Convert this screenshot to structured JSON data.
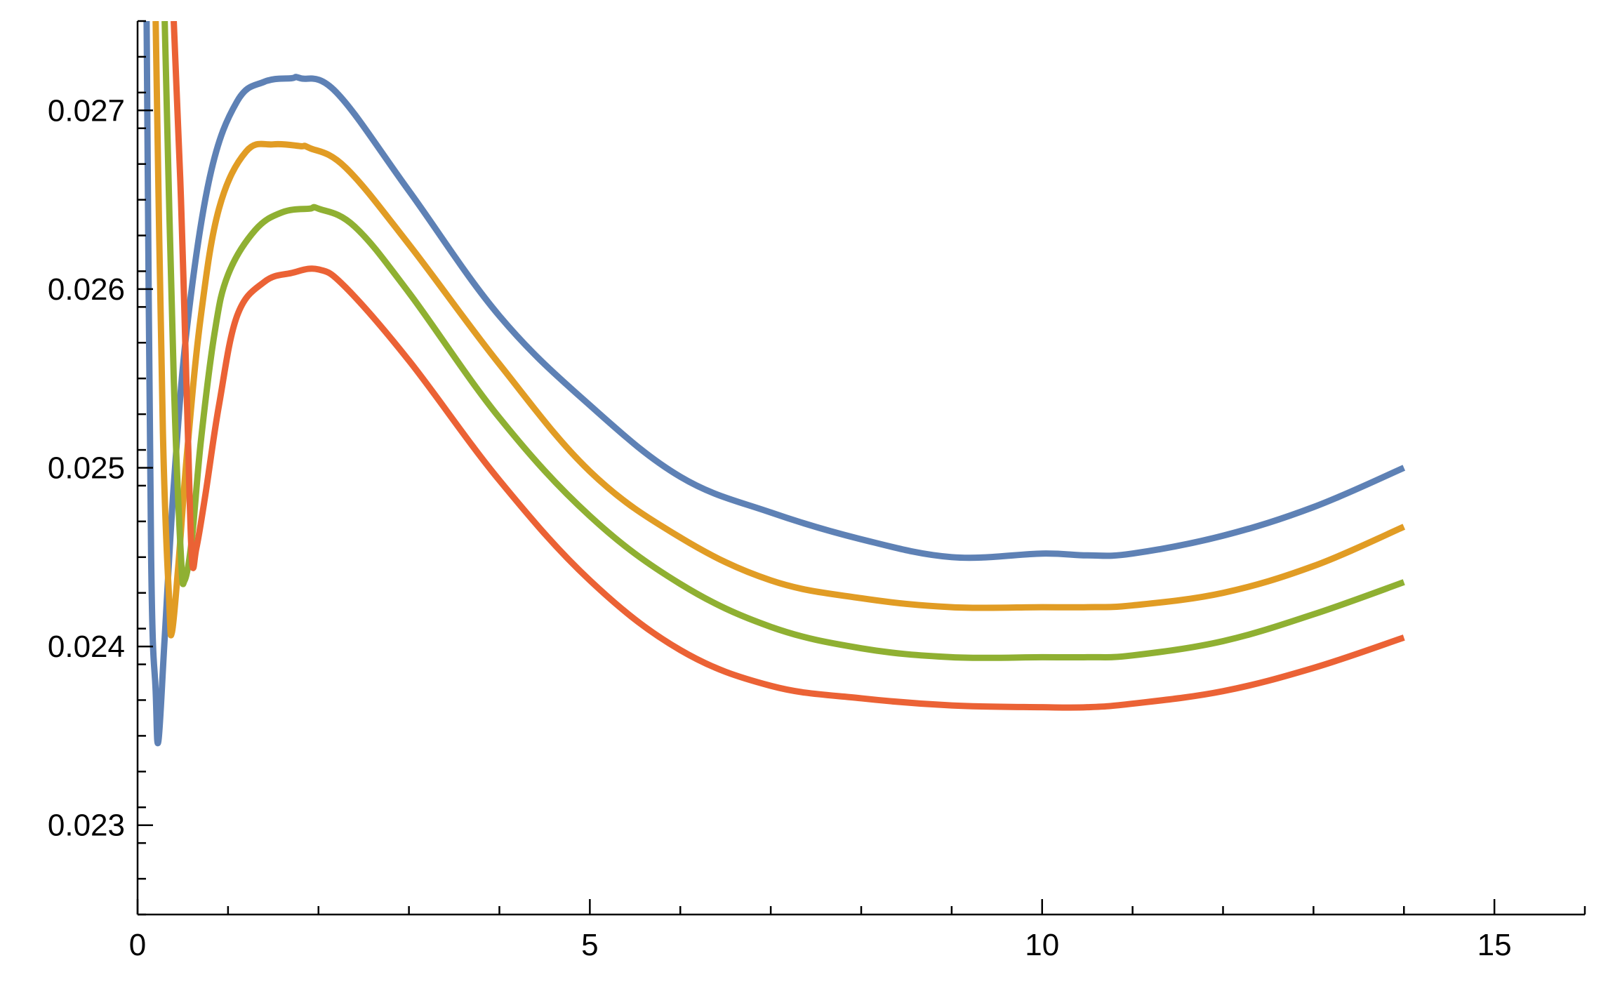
{
  "chart_data": {
    "type": "line",
    "title": "",
    "xlabel": "",
    "ylabel": "",
    "xlim": [
      0,
      16
    ],
    "ylim": [
      0.0225,
      0.0275
    ],
    "x_ticks": [
      0,
      5,
      10,
      15
    ],
    "x_tick_labels": [
      "0",
      "5",
      "10",
      "15"
    ],
    "y_ticks": [
      0.023,
      0.024,
      0.025,
      0.026,
      0.027
    ],
    "y_tick_labels": [
      "0.023",
      "0.024",
      "0.025",
      "0.026",
      "0.027"
    ],
    "x_minor_step": 1,
    "y_minor_step": 0.0002,
    "grid": false,
    "legend": "none",
    "series": [
      {
        "color": "#5e81b5",
        "x": [
          0.1,
          0.15,
          0.2,
          0.23,
          0.3,
          0.4,
          0.55,
          0.8,
          1.1,
          1.4,
          1.7,
          1.8,
          2.2,
          3.0,
          4.0,
          5.0,
          6.0,
          7.0,
          8.0,
          9.0,
          10.0,
          10.5,
          11.0,
          12.0,
          13.0,
          14.0
        ],
        "y": [
          0.0275,
          0.0245,
          0.02375,
          0.02347,
          0.02405,
          0.0249,
          0.0258,
          0.02663,
          0.02705,
          0.02716,
          0.02718,
          0.02718,
          0.0271,
          0.02655,
          0.02585,
          0.02535,
          0.02495,
          0.02475,
          0.0246,
          0.0245,
          0.02452,
          0.02451,
          0.02452,
          0.02462,
          0.02478,
          0.025
        ]
      },
      {
        "color": "#e19c24",
        "x": [
          0.2,
          0.28,
          0.35,
          0.38,
          0.45,
          0.55,
          0.7,
          0.9,
          1.2,
          1.5,
          1.8,
          1.9,
          2.3,
          3.0,
          4.0,
          5.0,
          6.0,
          7.0,
          8.0,
          9.0,
          10.0,
          10.5,
          11.0,
          12.0,
          13.0,
          14.0
        ],
        "y": [
          0.0275,
          0.0252,
          0.02425,
          0.02408,
          0.02445,
          0.0251,
          0.02585,
          0.02645,
          0.02677,
          0.02681,
          0.0268,
          0.02679,
          0.02668,
          0.02625,
          0.02558,
          0.02498,
          0.02461,
          0.02437,
          0.02427,
          0.02422,
          0.02422,
          0.02422,
          0.02423,
          0.0243,
          0.02445,
          0.02467
        ]
      },
      {
        "color": "#8fb032",
        "x": [
          0.3,
          0.4,
          0.48,
          0.52,
          0.6,
          0.7,
          0.85,
          1.0,
          1.3,
          1.6,
          1.9,
          2.0,
          2.4,
          3.0,
          4.0,
          5.0,
          6.0,
          7.0,
          8.0,
          9.0,
          10.0,
          10.5,
          11.0,
          12.0,
          13.0,
          14.0
        ],
        "y": [
          0.0275,
          0.0255,
          0.0245,
          0.02437,
          0.0246,
          0.02515,
          0.02575,
          0.02608,
          0.02633,
          0.02643,
          0.02645,
          0.02645,
          0.02635,
          0.02598,
          0.02528,
          0.02473,
          0.02435,
          0.02411,
          0.02399,
          0.02394,
          0.02394,
          0.02394,
          0.02395,
          0.02403,
          0.02418,
          0.02436
        ]
      },
      {
        "color": "#eb6235",
        "x": [
          0.4,
          0.48,
          0.55,
          0.6,
          0.65,
          0.75,
          0.9,
          1.1,
          1.4,
          1.7,
          2.0,
          2.3,
          3.0,
          4.0,
          5.0,
          6.0,
          7.0,
          8.0,
          9.0,
          10.0,
          10.5,
          11.0,
          12.0,
          13.0,
          14.0
        ],
        "y": [
          0.0275,
          0.0265,
          0.0253,
          0.0245,
          0.02455,
          0.02485,
          0.02535,
          0.02585,
          0.02604,
          0.02609,
          0.02611,
          0.02601,
          0.0256,
          0.02493,
          0.02437,
          0.02398,
          0.02378,
          0.02371,
          0.02367,
          0.02366,
          0.02366,
          0.02368,
          0.02375,
          0.02388,
          0.02405
        ]
      }
    ]
  }
}
